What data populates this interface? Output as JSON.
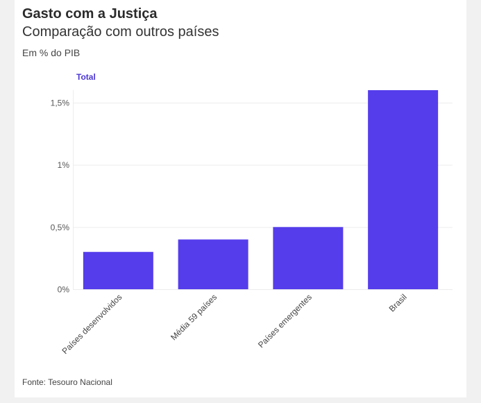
{
  "chart_data": {
    "type": "bar",
    "title": "Gasto com a Justiça",
    "subtitle": "Comparação com outros países",
    "ylabel": "Em % do PIB",
    "source": "Fonte: Tesouro Nacional",
    "categories": [
      "Países desenvolvidos",
      "Média 59 países",
      "Países emergentes",
      "Brasil"
    ],
    "series": [
      {
        "name": "Total",
        "values": [
          0.3,
          0.4,
          0.5,
          1.6
        ]
      }
    ],
    "ylim": [
      0,
      1.6
    ],
    "yticks": [
      {
        "value": 0,
        "label": "0%"
      },
      {
        "value": 0.5,
        "label": "0,5%"
      },
      {
        "value": 1,
        "label": "1%"
      },
      {
        "value": 1.5,
        "label": "1,5%"
      }
    ],
    "grid": true,
    "legend_position": "top-left",
    "colors": {
      "bar": "#553deb",
      "legend_text": "#4a35d6",
      "grid": "#ececec"
    }
  }
}
